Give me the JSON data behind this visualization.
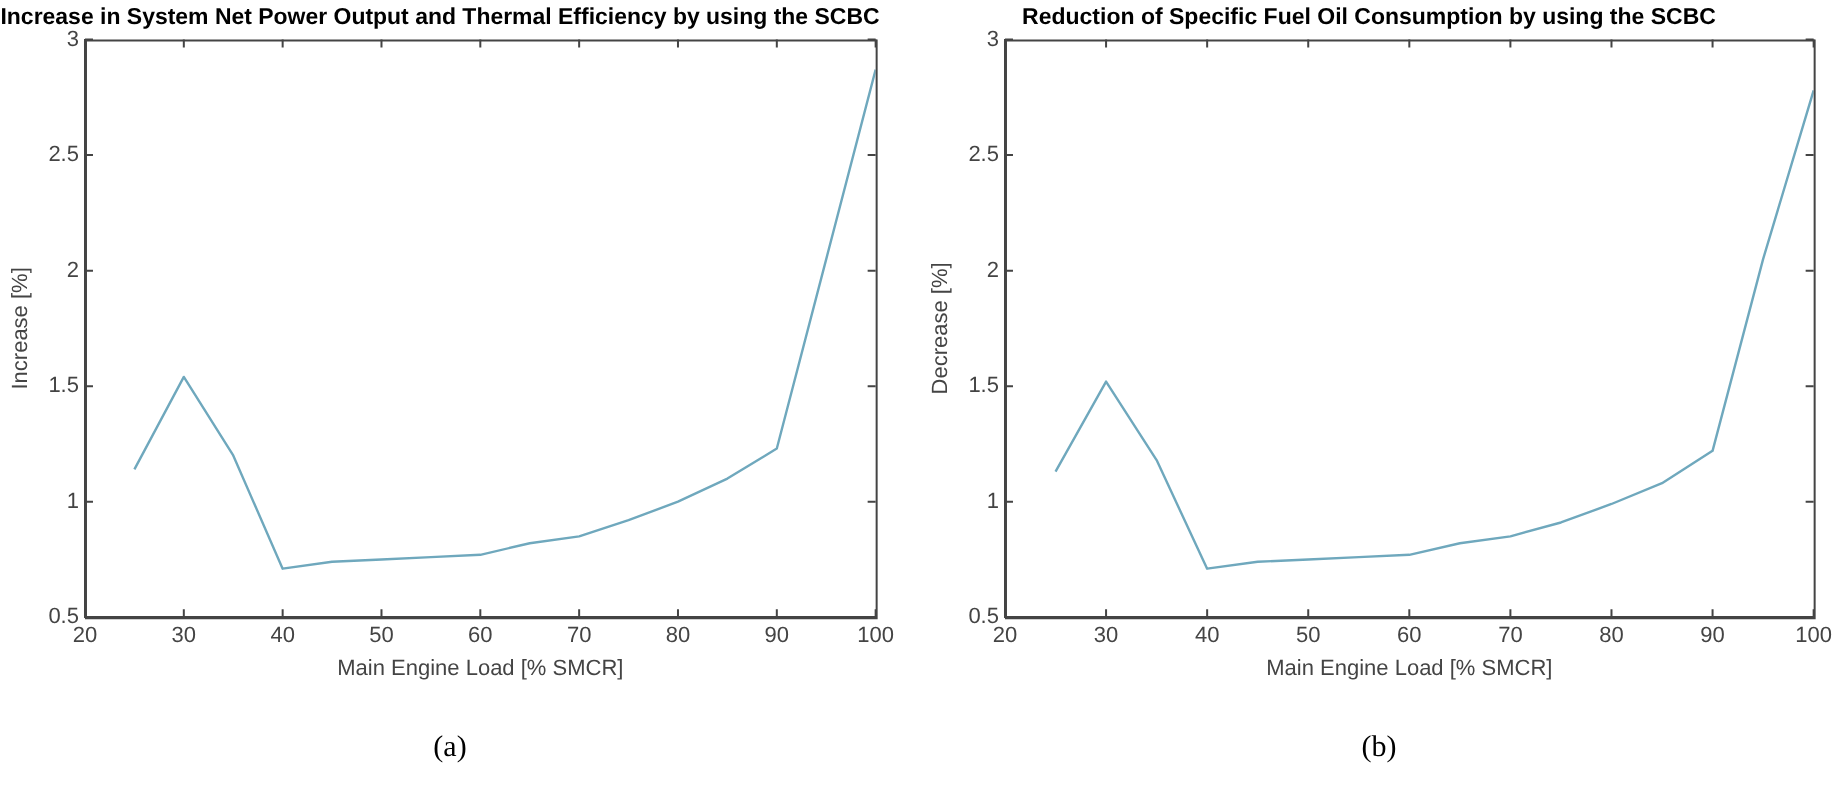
{
  "chart_data": [
    {
      "type": "line",
      "title": "Increase in System Net Power Output and Thermal Efficiency by using the SCBC",
      "xlabel": "Main Engine Load [% SMCR]",
      "ylabel": "Increase [%]",
      "x": [
        25,
        30,
        35,
        40,
        45,
        50,
        55,
        60,
        65,
        70,
        75,
        80,
        85,
        90,
        95,
        100
      ],
      "series": [
        {
          "color": "#6fa8bd",
          "values": [
            1.14,
            1.54,
            1.2,
            0.71,
            0.74,
            0.75,
            0.76,
            0.77,
            0.82,
            0.85,
            0.92,
            1.0,
            1.1,
            1.23,
            2.05,
            2.87
          ]
        }
      ],
      "xlim": [
        20,
        100
      ],
      "xticks": [
        20,
        30,
        40,
        50,
        60,
        70,
        80,
        90,
        100
      ],
      "ylim": [
        0.5,
        3
      ],
      "yticks": [
        0.5,
        1,
        1.5,
        2,
        2.5,
        3
      ],
      "grid": false,
      "legend": false,
      "marker": "none",
      "line_style": "solid",
      "annotations": [
        "(a)"
      ]
    },
    {
      "type": "line",
      "title": "Reduction of Specific Fuel Oil Consumption by using the SCBC",
      "xlabel": "Main Engine Load [% SMCR]",
      "ylabel": "Decrease [%]",
      "x": [
        25,
        30,
        35,
        40,
        45,
        50,
        55,
        60,
        65,
        70,
        75,
        80,
        85,
        90,
        95,
        100
      ],
      "series": [
        {
          "color": "#6fa8bd",
          "values": [
            1.13,
            1.52,
            1.18,
            0.71,
            0.74,
            0.75,
            0.76,
            0.77,
            0.82,
            0.85,
            0.91,
            0.99,
            1.08,
            1.22,
            2.05,
            2.78
          ]
        }
      ],
      "xlim": [
        20,
        100
      ],
      "xticks": [
        20,
        30,
        40,
        50,
        60,
        70,
        80,
        90,
        100
      ],
      "ylim": [
        0.5,
        3
      ],
      "yticks": [
        0.5,
        1,
        1.5,
        2,
        2.5,
        3
      ],
      "grid": false,
      "legend": false,
      "marker": "none",
      "line_style": "solid",
      "annotations": [
        "(b)"
      ]
    }
  ]
}
